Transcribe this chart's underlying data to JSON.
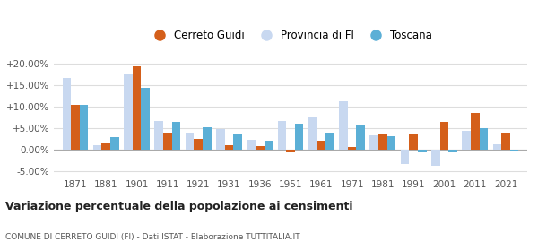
{
  "years": [
    1871,
    1881,
    1901,
    1911,
    1921,
    1931,
    1936,
    1951,
    1961,
    1971,
    1981,
    1991,
    2001,
    2011,
    2021
  ],
  "cerreto_guidi": [
    10.5,
    1.7,
    19.5,
    4.0,
    2.5,
    1.0,
    0.8,
    -0.5,
    2.1,
    0.7,
    3.5,
    3.6,
    6.6,
    8.5,
    4.1
  ],
  "provincia_fi": [
    16.8,
    1.0,
    17.8,
    6.7,
    4.0,
    4.8,
    2.3,
    6.7,
    7.7,
    11.2,
    3.3,
    -3.2,
    -3.8,
    4.4,
    1.2
  ],
  "toscana": [
    10.5,
    3.0,
    14.5,
    6.6,
    5.2,
    3.7,
    2.2,
    6.1,
    4.0,
    5.6,
    3.1,
    -0.6,
    -0.5,
    5.0,
    -0.3
  ],
  "color_cerreto": "#d45f1a",
  "color_provincia": "#c8d8f0",
  "color_toscana": "#5bafd6",
  "title": "Variazione percentuale della popolazione ai censimenti",
  "subtitle": "COMUNE DI CERRETO GUIDI (FI) - Dati ISTAT - Elaborazione TUTTITALIA.IT",
  "ylim": [
    -6.0,
    22.0
  ],
  "yticks": [
    -5.0,
    0.0,
    5.0,
    10.0,
    15.0,
    20.0
  ],
  "ytick_labels": [
    "-5.00%",
    "0.00%",
    "+5.00%",
    "+10.00%",
    "+15.00%",
    "+20.00%"
  ],
  "background_color": "#ffffff",
  "grid_color": "#dddddd"
}
